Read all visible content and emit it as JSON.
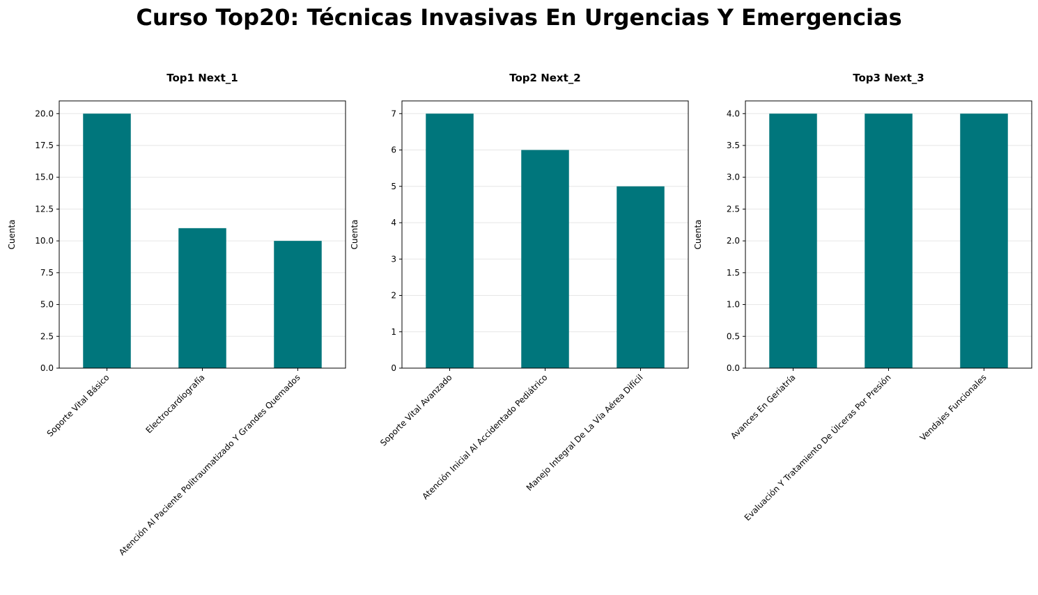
{
  "title": "Curso Top20: Técnicas Invasivas En Urgencias Y Emergencias",
  "colors": {
    "bar": "#00767c",
    "grid": "#e6e6e6",
    "axis": "#000000"
  },
  "chart_data": [
    {
      "type": "bar",
      "title": "Top1 Next_1",
      "ylabel": "Cuenta",
      "xlabel": "",
      "categories": [
        "Soporte Vital Básico",
        "Electrocardiografía",
        "Atención Al Paciente Politraumatizado Y Grandes Quemados"
      ],
      "values": [
        20,
        11,
        10
      ],
      "ylim": [
        0,
        21
      ],
      "yticks": [
        "0.0",
        "2.5",
        "5.0",
        "7.5",
        "10.0",
        "12.5",
        "15.0",
        "17.5",
        "20.0"
      ],
      "grid": true
    },
    {
      "type": "bar",
      "title": "Top2 Next_2",
      "ylabel": "Cuenta",
      "xlabel": "",
      "categories": [
        "Soporte Vital Avanzado",
        "Atención Inicial Al Accidentado Pediátrico",
        "Manejo Integral De La Vía Aérea Difícil"
      ],
      "values": [
        7,
        6,
        5
      ],
      "ylim": [
        0,
        7.35
      ],
      "yticks": [
        "0",
        "1",
        "2",
        "3",
        "4",
        "5",
        "6",
        "7"
      ],
      "grid": true
    },
    {
      "type": "bar",
      "title": "Top3 Next_3",
      "ylabel": "Cuenta",
      "xlabel": "",
      "categories": [
        "Avances En Geriatría",
        "Evaluación Y Tratamiento De Úlceras Por Presión",
        "Vendajes Funcionales"
      ],
      "values": [
        4,
        4,
        4
      ],
      "ylim": [
        0,
        4.2
      ],
      "yticks": [
        "0.0",
        "0.5",
        "1.0",
        "1.5",
        "2.0",
        "2.5",
        "3.0",
        "3.5",
        "4.0"
      ],
      "grid": true
    }
  ]
}
